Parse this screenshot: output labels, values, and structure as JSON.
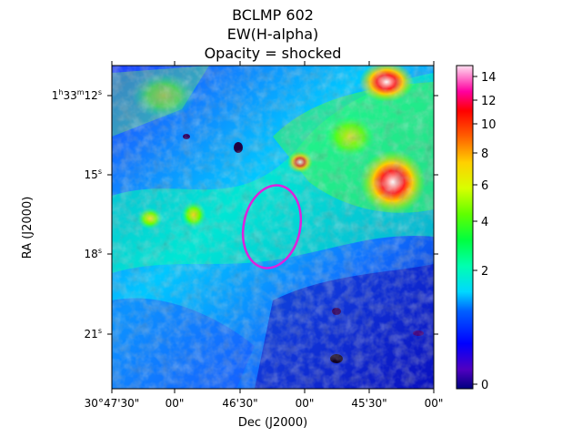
{
  "chart_data": {
    "type": "heatmap",
    "title_lines": [
      "BCLMP 602",
      "EW(H-alpha)",
      "Opacity = shocked"
    ],
    "xlabel": "Dec (J2000)",
    "ylabel": "RA (J2000)",
    "x_ticks": [
      "30°47'30\"",
      "00\"",
      "46'30\"",
      "00\"",
      "45'30\"",
      "00\""
    ],
    "y_ticks": [
      {
        "h": "1",
        "m": "33",
        "s": "12",
        "label_prefix": "",
        "short": ""
      },
      {
        "short": "15"
      },
      {
        "short": "18"
      },
      {
        "short": "21"
      }
    ],
    "colorbar": {
      "ticks": [
        0,
        2,
        4,
        6,
        8,
        10,
        12,
        14
      ],
      "range": [
        -0.2,
        14.8
      ],
      "colormap": "gist_ncar-like"
    },
    "region_ellipse": {
      "color": "#dd22dd",
      "shape": "ellipse",
      "label": ""
    },
    "colors": {
      "low": "#0000ff",
      "mid": "#00ffff",
      "high": "#ffff00",
      "peak": "#ff0000",
      "saturated": "#ffffff",
      "ellipse": "#dd22dd"
    }
  }
}
